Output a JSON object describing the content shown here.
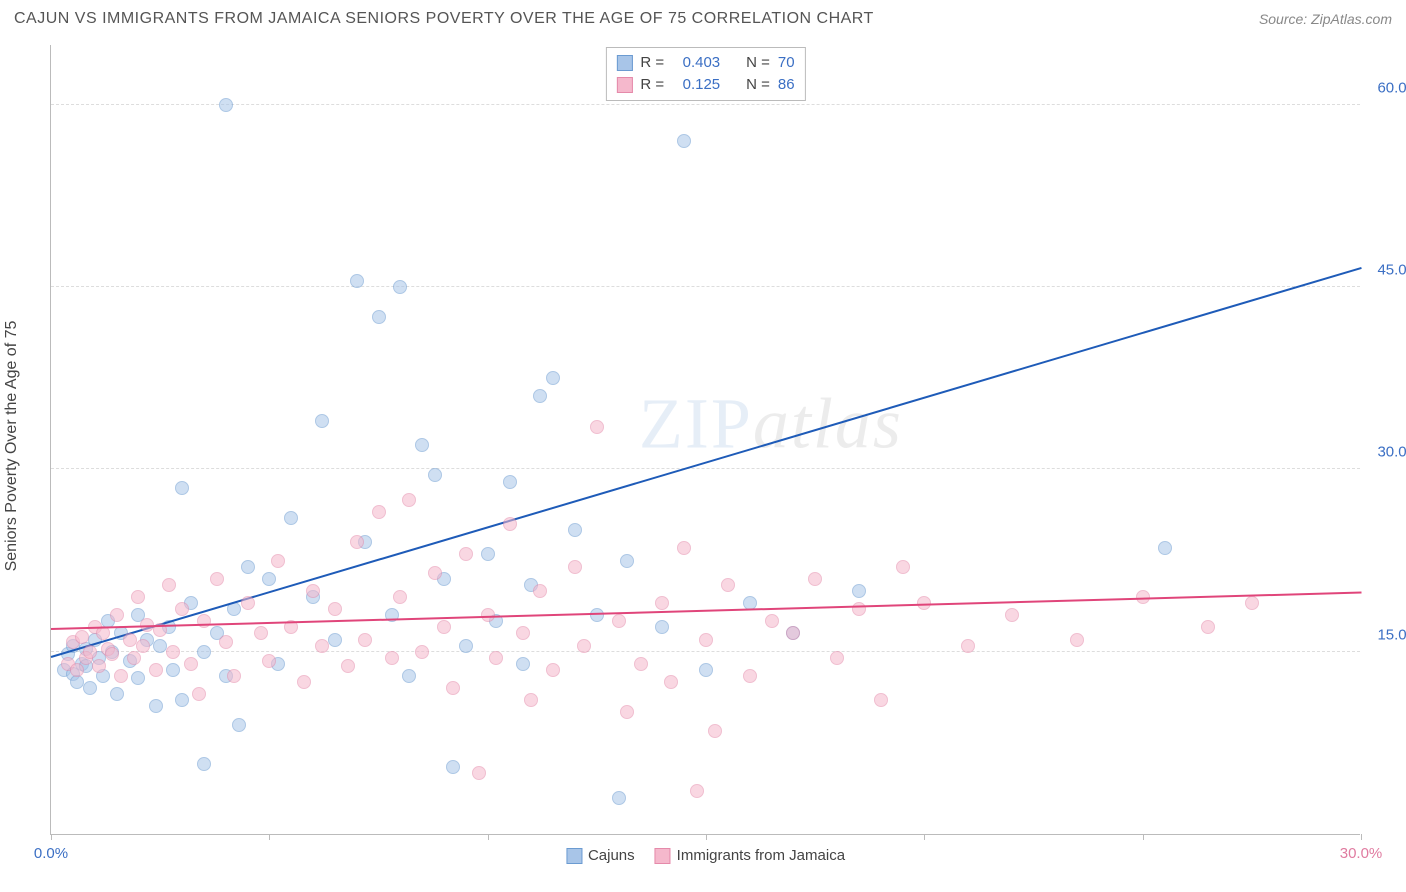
{
  "title": "CAJUN VS IMMIGRANTS FROM JAMAICA SENIORS POVERTY OVER THE AGE OF 75 CORRELATION CHART",
  "source": "Source: ZipAtlas.com",
  "ylabel": "Seniors Poverty Over the Age of 75",
  "watermark_zip": "ZIP",
  "watermark_atlas": "atlas",
  "chart": {
    "type": "scatter",
    "xlim": [
      0,
      30
    ],
    "ylim": [
      0,
      65
    ],
    "background_color": "#ffffff",
    "grid_color": "#dddddd",
    "marker_radius": 7,
    "x_ticks": [
      0,
      5,
      10,
      15,
      20,
      25,
      30
    ],
    "x_tick_labels": {
      "0": "0.0%",
      "30": "30.0%"
    },
    "x_tick_color_left": "#3b6fc4",
    "x_tick_color_right": "#e07ba0",
    "y_ticks": [
      15,
      30,
      45,
      60
    ],
    "y_tick_labels": {
      "15": "15.0%",
      "30": "30.0%",
      "45": "45.0%",
      "60": "60.0%"
    },
    "y_tick_color": "#3b6fc4",
    "series": [
      {
        "name": "Cajuns",
        "fill_color": "#a8c5e8",
        "stroke_color": "#6b9bd1",
        "fill_opacity": 0.55,
        "trend_color": "#1e5bb8",
        "trend": {
          "x1": 0,
          "y1": 14.5,
          "x2": 30,
          "y2": 46.5
        },
        "R": "0.403",
        "N": "70",
        "points": [
          [
            0.3,
            13.5
          ],
          [
            0.4,
            14.8
          ],
          [
            0.5,
            13.2
          ],
          [
            0.5,
            15.5
          ],
          [
            0.6,
            12.5
          ],
          [
            0.7,
            14.0
          ],
          [
            0.8,
            15.2
          ],
          [
            0.8,
            13.8
          ],
          [
            0.9,
            12.0
          ],
          [
            1.0,
            16.0
          ],
          [
            1.1,
            14.5
          ],
          [
            1.2,
            13.0
          ],
          [
            1.3,
            17.5
          ],
          [
            1.4,
            15.0
          ],
          [
            1.5,
            11.5
          ],
          [
            1.6,
            16.5
          ],
          [
            1.8,
            14.2
          ],
          [
            2.0,
            18.0
          ],
          [
            2.0,
            12.8
          ],
          [
            2.2,
            16.0
          ],
          [
            2.4,
            10.5
          ],
          [
            2.5,
            15.5
          ],
          [
            2.7,
            17.0
          ],
          [
            2.8,
            13.5
          ],
          [
            3.0,
            11.0
          ],
          [
            3.0,
            28.5
          ],
          [
            3.2,
            19.0
          ],
          [
            3.5,
            15.0
          ],
          [
            3.5,
            5.8
          ],
          [
            3.8,
            16.5
          ],
          [
            4.0,
            60.0
          ],
          [
            4.0,
            13.0
          ],
          [
            4.2,
            18.5
          ],
          [
            4.5,
            22.0
          ],
          [
            5.0,
            21.0
          ],
          [
            5.2,
            14.0
          ],
          [
            5.5,
            26.0
          ],
          [
            6.0,
            19.5
          ],
          [
            6.2,
            34.0
          ],
          [
            6.5,
            16.0
          ],
          [
            7.0,
            45.5
          ],
          [
            7.2,
            24.0
          ],
          [
            7.5,
            42.5
          ],
          [
            7.8,
            18.0
          ],
          [
            8.0,
            45.0
          ],
          [
            8.2,
            13.0
          ],
          [
            8.5,
            32.0
          ],
          [
            8.8,
            29.5
          ],
          [
            9.0,
            21.0
          ],
          [
            9.2,
            5.5
          ],
          [
            9.5,
            15.5
          ],
          [
            10.0,
            23.0
          ],
          [
            10.2,
            17.5
          ],
          [
            10.5,
            29.0
          ],
          [
            10.8,
            14.0
          ],
          [
            11.0,
            20.5
          ],
          [
            11.2,
            36.0
          ],
          [
            11.5,
            37.5
          ],
          [
            12.0,
            25.0
          ],
          [
            12.5,
            18.0
          ],
          [
            13.0,
            3.0
          ],
          [
            13.2,
            22.5
          ],
          [
            14.0,
            17.0
          ],
          [
            14.5,
            57.0
          ],
          [
            15.0,
            13.5
          ],
          [
            16.0,
            19.0
          ],
          [
            17.0,
            16.5
          ],
          [
            18.5,
            20.0
          ],
          [
            25.5,
            23.5
          ],
          [
            4.3,
            9.0
          ]
        ]
      },
      {
        "name": "Immigrants from Jamaica",
        "fill_color": "#f5b8cc",
        "stroke_color": "#e58aaa",
        "fill_opacity": 0.55,
        "trend_color": "#e0457a",
        "trend": {
          "x1": 0,
          "y1": 16.8,
          "x2": 30,
          "y2": 19.8
        },
        "R": "0.125",
        "N": "86",
        "points": [
          [
            0.4,
            14.0
          ],
          [
            0.5,
            15.8
          ],
          [
            0.6,
            13.5
          ],
          [
            0.7,
            16.2
          ],
          [
            0.8,
            14.5
          ],
          [
            0.9,
            15.0
          ],
          [
            1.0,
            17.0
          ],
          [
            1.1,
            13.8
          ],
          [
            1.2,
            16.5
          ],
          [
            1.3,
            15.2
          ],
          [
            1.4,
            14.8
          ],
          [
            1.5,
            18.0
          ],
          [
            1.6,
            13.0
          ],
          [
            1.8,
            16.0
          ],
          [
            1.9,
            14.5
          ],
          [
            2.0,
            19.5
          ],
          [
            2.1,
            15.5
          ],
          [
            2.2,
            17.2
          ],
          [
            2.4,
            13.5
          ],
          [
            2.5,
            16.8
          ],
          [
            2.7,
            20.5
          ],
          [
            2.8,
            15.0
          ],
          [
            3.0,
            18.5
          ],
          [
            3.2,
            14.0
          ],
          [
            3.4,
            11.5
          ],
          [
            3.5,
            17.5
          ],
          [
            3.8,
            21.0
          ],
          [
            4.0,
            15.8
          ],
          [
            4.2,
            13.0
          ],
          [
            4.5,
            19.0
          ],
          [
            4.8,
            16.5
          ],
          [
            5.0,
            14.2
          ],
          [
            5.2,
            22.5
          ],
          [
            5.5,
            17.0
          ],
          [
            5.8,
            12.5
          ],
          [
            6.0,
            20.0
          ],
          [
            6.2,
            15.5
          ],
          [
            6.5,
            18.5
          ],
          [
            6.8,
            13.8
          ],
          [
            7.0,
            24.0
          ],
          [
            7.2,
            16.0
          ],
          [
            7.5,
            26.5
          ],
          [
            7.8,
            14.5
          ],
          [
            8.0,
            19.5
          ],
          [
            8.2,
            27.5
          ],
          [
            8.5,
            15.0
          ],
          [
            8.8,
            21.5
          ],
          [
            9.0,
            17.0
          ],
          [
            9.2,
            12.0
          ],
          [
            9.5,
            23.0
          ],
          [
            9.8,
            5.0
          ],
          [
            10.0,
            18.0
          ],
          [
            10.2,
            14.5
          ],
          [
            10.5,
            25.5
          ],
          [
            10.8,
            16.5
          ],
          [
            11.0,
            11.0
          ],
          [
            11.2,
            20.0
          ],
          [
            11.5,
            13.5
          ],
          [
            12.0,
            22.0
          ],
          [
            12.2,
            15.5
          ],
          [
            12.5,
            33.5
          ],
          [
            13.0,
            17.5
          ],
          [
            13.2,
            10.0
          ],
          [
            13.5,
            14.0
          ],
          [
            14.0,
            19.0
          ],
          [
            14.2,
            12.5
          ],
          [
            14.5,
            23.5
          ],
          [
            15.0,
            16.0
          ],
          [
            15.2,
            8.5
          ],
          [
            15.5,
            20.5
          ],
          [
            16.0,
            13.0
          ],
          [
            16.5,
            17.5
          ],
          [
            17.0,
            16.5
          ],
          [
            17.5,
            21.0
          ],
          [
            18.0,
            14.5
          ],
          [
            18.5,
            18.5
          ],
          [
            19.0,
            11.0
          ],
          [
            19.5,
            22.0
          ],
          [
            20.0,
            19.0
          ],
          [
            21.0,
            15.5
          ],
          [
            22.0,
            18.0
          ],
          [
            23.5,
            16.0
          ],
          [
            25.0,
            19.5
          ],
          [
            26.5,
            17.0
          ],
          [
            27.5,
            19.0
          ],
          [
            14.8,
            3.5
          ]
        ]
      }
    ]
  },
  "stats_legend": {
    "R_label": "R =",
    "N_label": "N ="
  },
  "bottom_legend_labels": [
    "Cajuns",
    "Immigrants from Jamaica"
  ]
}
